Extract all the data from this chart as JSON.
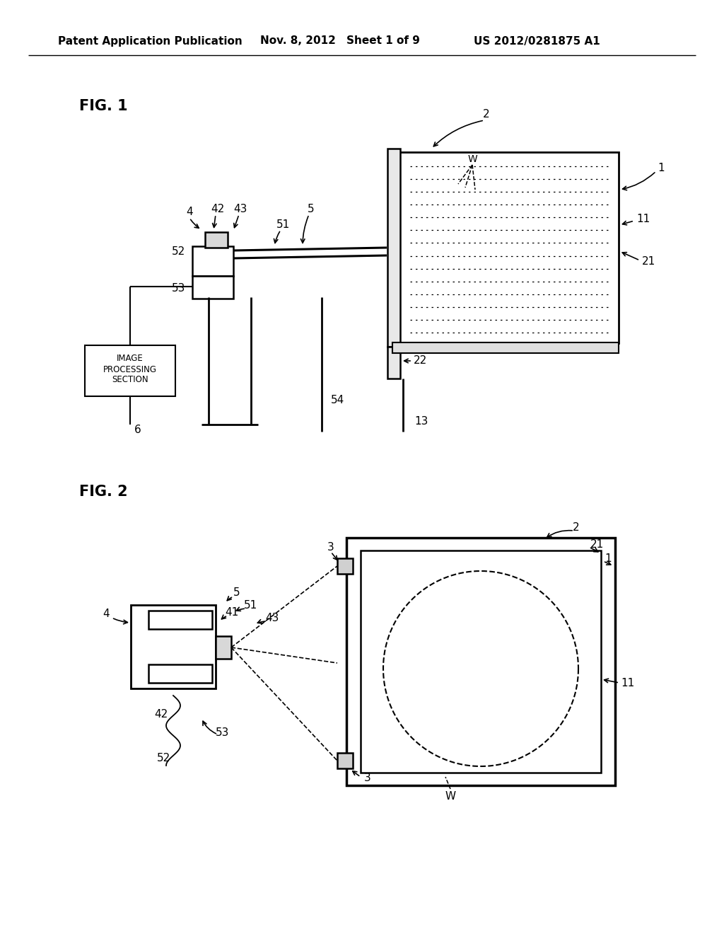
{
  "background_color": "#ffffff",
  "header_text": "Patent Application Publication",
  "header_date": "Nov. 8, 2012",
  "header_sheet": "Sheet 1 of 9",
  "header_patent": "US 2012/0281875 A1",
  "fig1_label": "FIG. 1",
  "fig2_label": "FIG. 2"
}
